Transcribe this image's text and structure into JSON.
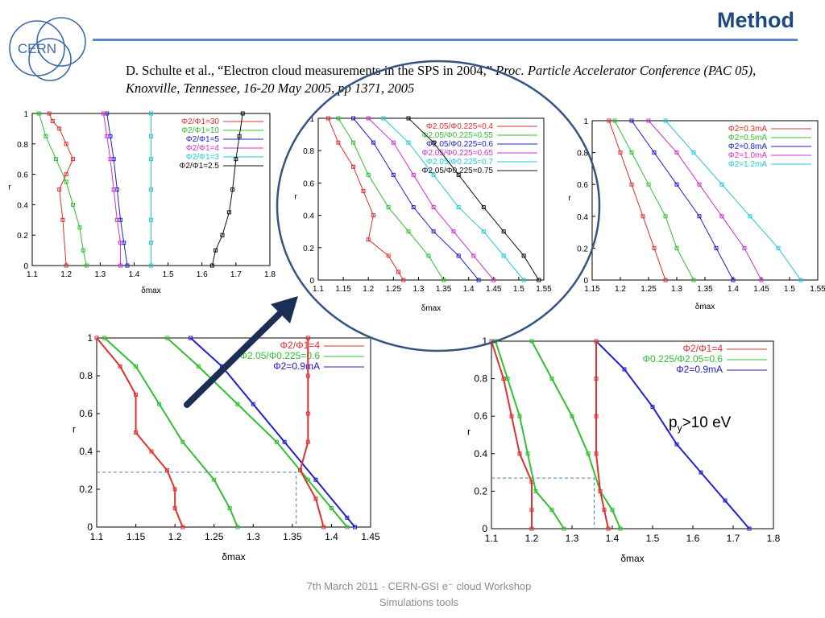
{
  "header": {
    "title": "Method"
  },
  "logo": {
    "text": "CERN"
  },
  "citation": {
    "authors": "D. Schulte et al., “Electron cloud measurements in the SPS in 2004,”",
    "journal": "Proc. Particle Accelerator Conference (PAC 05), Knoxville, Tennessee, 16-20 May 2005, pp 1371, 2005"
  },
  "annotation": {
    "text_main": "p",
    "text_sub": "y",
    "text_rest": ">10 eV"
  },
  "footer": {
    "line1": "7th March 2011    -   CERN-GSI e⁻ cloud  Workshop",
    "line2": "Simulations tools"
  },
  "chart_data": [
    {
      "id": "top-left",
      "type": "line",
      "xlabel": "δmax",
      "ylabel": "r",
      "xlim": [
        1.1,
        1.8
      ],
      "ylim": [
        0,
        1
      ],
      "xticks": [
        1.1,
        1.2,
        1.3,
        1.4,
        1.5,
        1.6,
        1.7,
        1.8
      ],
      "yticks": [
        0,
        0.2,
        0.4,
        0.6,
        0.8,
        1
      ],
      "legend": "top-right",
      "series": [
        {
          "name": "Φ2/Φ1=30",
          "color": "#e03030",
          "x": [
            1.15,
            1.16,
            1.18,
            1.2,
            1.22,
            1.2,
            1.18,
            1.19,
            1.2
          ],
          "y": [
            1,
            0.95,
            0.9,
            0.8,
            0.7,
            0.6,
            0.5,
            0.3,
            0.0
          ]
        },
        {
          "name": "Φ2/Φ1=10",
          "color": "#30c030",
          "x": [
            1.12,
            1.14,
            1.17,
            1.2,
            1.22,
            1.24,
            1.25,
            1.26
          ],
          "y": [
            1,
            0.85,
            0.7,
            0.55,
            0.4,
            0.25,
            0.1,
            0.0
          ]
        },
        {
          "name": "Φ2/Φ1=5",
          "color": "#2020d0",
          "x": [
            1.32,
            1.33,
            1.34,
            1.35,
            1.36,
            1.37,
            1.38
          ],
          "y": [
            1,
            0.85,
            0.7,
            0.5,
            0.3,
            0.15,
            0.0
          ]
        },
        {
          "name": "Φ2/Φ1=4",
          "color": "#d030d0",
          "x": [
            1.31,
            1.32,
            1.33,
            1.34,
            1.35,
            1.36,
            1.36
          ],
          "y": [
            1,
            0.85,
            0.7,
            0.5,
            0.3,
            0.15,
            0.0
          ]
        },
        {
          "name": "Φ2/Φ1=3",
          "color": "#20c8d8",
          "x": [
            1.45,
            1.45,
            1.45,
            1.45,
            1.45,
            1.45,
            1.45
          ],
          "y": [
            1,
            0.85,
            0.7,
            0.5,
            0.3,
            0.15,
            0.0
          ]
        },
        {
          "name": "Φ2/Φ1=2.5",
          "color": "#101010",
          "x": [
            1.72,
            1.71,
            1.7,
            1.69,
            1.68,
            1.66,
            1.64,
            1.63
          ],
          "y": [
            1,
            0.85,
            0.7,
            0.5,
            0.35,
            0.2,
            0.1,
            0.0
          ]
        }
      ]
    },
    {
      "id": "top-middle",
      "type": "line",
      "xlabel": "δmax",
      "ylabel": "r",
      "xlim": [
        1.1,
        1.55
      ],
      "ylim": [
        0,
        1
      ],
      "xticks": [
        1.1,
        1.15,
        1.2,
        1.25,
        1.3,
        1.35,
        1.4,
        1.45,
        1.5,
        1.55
      ],
      "yticks": [
        0,
        0.2,
        0.4,
        0.6,
        0.8,
        1
      ],
      "legend": "top-right",
      "series": [
        {
          "name": "Φ2.05/Φ0.225=0.4",
          "color": "#e03030",
          "x": [
            1.12,
            1.14,
            1.17,
            1.19,
            1.21,
            1.2,
            1.24,
            1.26,
            1.27
          ],
          "y": [
            1,
            0.85,
            0.7,
            0.55,
            0.4,
            0.25,
            0.15,
            0.05,
            0.0
          ]
        },
        {
          "name": "Φ2.05/Φ0.225=0.55",
          "color": "#30c030",
          "x": [
            1.14,
            1.17,
            1.2,
            1.24,
            1.28,
            1.32,
            1.35
          ],
          "y": [
            1,
            0.85,
            0.65,
            0.45,
            0.3,
            0.15,
            0.0
          ]
        },
        {
          "name": "Φ2.05/Φ0.225=0.6",
          "color": "#2020d0",
          "x": [
            1.17,
            1.21,
            1.25,
            1.29,
            1.33,
            1.38,
            1.42
          ],
          "y": [
            1,
            0.85,
            0.65,
            0.45,
            0.3,
            0.15,
            0.0
          ]
        },
        {
          "name": "Φ2.05/Φ0.225=0.65",
          "color": "#d030d0",
          "x": [
            1.2,
            1.25,
            1.29,
            1.33,
            1.37,
            1.41,
            1.45
          ],
          "y": [
            1,
            0.85,
            0.65,
            0.45,
            0.3,
            0.15,
            0.0
          ]
        },
        {
          "name": "Φ2.05/Φ0.225=0.7",
          "color": "#20c8d8",
          "x": [
            1.23,
            1.28,
            1.33,
            1.38,
            1.43,
            1.47,
            1.51
          ],
          "y": [
            1,
            0.85,
            0.65,
            0.45,
            0.3,
            0.15,
            0.0
          ]
        },
        {
          "name": "Φ2.05/Φ0.225=0.75",
          "color": "#101010",
          "x": [
            1.28,
            1.33,
            1.38,
            1.43,
            1.47,
            1.51,
            1.54
          ],
          "y": [
            1,
            0.85,
            0.65,
            0.45,
            0.3,
            0.15,
            0.0
          ]
        }
      ]
    },
    {
      "id": "top-right",
      "type": "line",
      "xlabel": "δmax",
      "ylabel": "r",
      "xlim": [
        1.15,
        1.55
      ],
      "ylim": [
        0,
        1
      ],
      "xticks": [
        1.15,
        1.2,
        1.25,
        1.3,
        1.35,
        1.4,
        1.45,
        1.5,
        1.55
      ],
      "yticks": [
        0,
        0.2,
        0.4,
        0.6,
        0.8,
        1
      ],
      "legend": "top-right",
      "series": [
        {
          "name": "Φ2=0.3mA",
          "color": "#e03030",
          "x": [
            1.18,
            1.2,
            1.22,
            1.24,
            1.26,
            1.28
          ],
          "y": [
            1,
            0.8,
            0.6,
            0.4,
            0.2,
            0.0
          ]
        },
        {
          "name": "Φ2=0.5mA",
          "color": "#30c030",
          "x": [
            1.19,
            1.22,
            1.25,
            1.28,
            1.3,
            1.33
          ],
          "y": [
            1,
            0.8,
            0.6,
            0.4,
            0.2,
            0.0
          ]
        },
        {
          "name": "Φ2=0.8mA",
          "color": "#2020d0",
          "x": [
            1.22,
            1.26,
            1.3,
            1.34,
            1.37,
            1.4
          ],
          "y": [
            1,
            0.8,
            0.6,
            0.4,
            0.2,
            0.0
          ]
        },
        {
          "name": "Φ2=1.0mA",
          "color": "#d030d0",
          "x": [
            1.25,
            1.3,
            1.34,
            1.38,
            1.42,
            1.45
          ],
          "y": [
            1,
            0.8,
            0.6,
            0.4,
            0.2,
            0.0
          ]
        },
        {
          "name": "Φ2=1.2mA",
          "color": "#20c8d8",
          "x": [
            1.28,
            1.33,
            1.38,
            1.43,
            1.48,
            1.52
          ],
          "y": [
            1,
            0.8,
            0.6,
            0.4,
            0.2,
            0.0
          ]
        }
      ]
    },
    {
      "id": "bottom-left",
      "type": "line",
      "xlabel": "δmax",
      "ylabel": "r",
      "xlim": [
        1.1,
        1.45
      ],
      "ylim": [
        0,
        1
      ],
      "xticks": [
        1.1,
        1.15,
        1.2,
        1.25,
        1.3,
        1.35,
        1.4,
        1.45
      ],
      "yticks": [
        0,
        0.2,
        0.4,
        0.6,
        0.8,
        1
      ],
      "legend": "top-right",
      "series": [
        {
          "name": "Φ2/Φ1=4",
          "color": "#e03030",
          "x": [
            1.1,
            1.13,
            1.15,
            1.15,
            1.17,
            1.19,
            1.2,
            1.2,
            1.21
          ],
          "y": [
            1,
            0.85,
            0.7,
            0.5,
            0.4,
            0.3,
            0.2,
            0.1,
            0.0
          ]
        },
        {
          "name": "Φ2.05/Φ0.225=0.6",
          "color": "#30c030",
          "x": [
            1.11,
            1.15,
            1.18,
            1.21,
            1.25,
            1.27,
            1.28
          ],
          "y": [
            1,
            0.85,
            0.65,
            0.45,
            0.25,
            0.1,
            0.0
          ]
        },
        {
          "name": "Φ2=0.9mA",
          "color": "#2020d0",
          "x": [
            1.22,
            1.26,
            1.3,
            1.34,
            1.38,
            1.42,
            1.43
          ],
          "y": [
            1,
            0.85,
            0.65,
            0.45,
            0.25,
            0.05,
            0.0
          ]
        },
        {
          "name": "",
          "color": "#30c030",
          "x": [
            1.19,
            1.23,
            1.28,
            1.33,
            1.37,
            1.4,
            1.42
          ],
          "y": [
            1,
            0.85,
            0.65,
            0.45,
            0.25,
            0.1,
            0.0
          ]
        },
        {
          "name": "",
          "color": "#e03030",
          "x": [
            1.37,
            1.37,
            1.37,
            1.37,
            1.36,
            1.38,
            1.39
          ],
          "y": [
            1,
            0.8,
            0.6,
            0.45,
            0.3,
            0.15,
            0.0
          ]
        }
      ]
    },
    {
      "id": "bottom-right",
      "type": "line",
      "xlabel": "δmax",
      "ylabel": "r",
      "xlim": [
        1.1,
        1.8
      ],
      "ylim": [
        0,
        1
      ],
      "xticks": [
        1.1,
        1.2,
        1.3,
        1.4,
        1.5,
        1.6,
        1.7,
        1.8
      ],
      "yticks": [
        0,
        0.2,
        0.4,
        0.6,
        0.8,
        1
      ],
      "legend": "top-right",
      "series": [
        {
          "name": "Φ2/Φ1=4",
          "color": "#e03030",
          "x": [
            1.1,
            1.13,
            1.15,
            1.17,
            1.2,
            1.2,
            1.2
          ],
          "y": [
            1,
            0.8,
            0.6,
            0.4,
            0.25,
            0.1,
            0.0
          ]
        },
        {
          "name": "Φ0.225/Φ2.05=0.6",
          "color": "#30c030",
          "x": [
            1.11,
            1.14,
            1.17,
            1.19,
            1.21,
            1.25,
            1.28
          ],
          "y": [
            1,
            0.8,
            0.6,
            0.4,
            0.2,
            0.1,
            0.0
          ]
        },
        {
          "name": "Φ2=0.9mA",
          "color": "#2020d0",
          "x": [
            1.36,
            1.43,
            1.5,
            1.56,
            1.62,
            1.68,
            1.74
          ],
          "y": [
            1,
            0.85,
            0.65,
            0.45,
            0.3,
            0.15,
            0.0
          ]
        },
        {
          "name": "",
          "color": "#30c030",
          "x": [
            1.2,
            1.25,
            1.3,
            1.34,
            1.37,
            1.4,
            1.42
          ],
          "y": [
            1,
            0.8,
            0.6,
            0.4,
            0.2,
            0.1,
            0.0
          ]
        },
        {
          "name": "",
          "color": "#e03030",
          "x": [
            1.36,
            1.36,
            1.36,
            1.36,
            1.37,
            1.38,
            1.39
          ],
          "y": [
            1,
            0.8,
            0.6,
            0.4,
            0.2,
            0.1,
            0.0
          ]
        }
      ]
    }
  ],
  "colors": {
    "title": "#1f497d",
    "rule": "#5b87c5",
    "arrow": "#1a2f55"
  }
}
